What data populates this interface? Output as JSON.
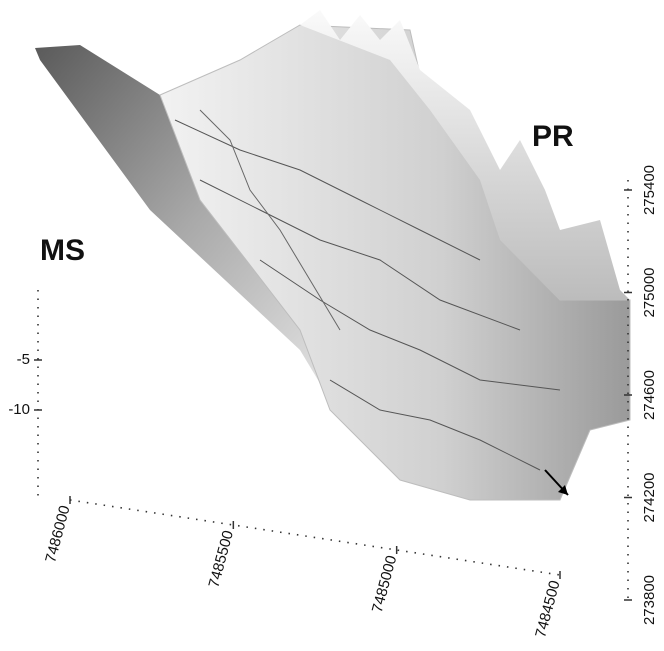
{
  "chart_data": {
    "type": "surface3d",
    "annotations": [
      "MS",
      "PR"
    ],
    "zlim": [
      -19,
      0
    ],
    "zticks": [
      -5,
      -10
    ],
    "xlim": [
      7486000,
      7484500
    ],
    "xticks": [
      7486000,
      7485500,
      7485000,
      7484500
    ],
    "ylim": [
      273800,
      275400
    ],
    "yticks": [
      273800,
      274200,
      274600,
      275000,
      275400
    ],
    "color": "#bdbdbd"
  }
}
